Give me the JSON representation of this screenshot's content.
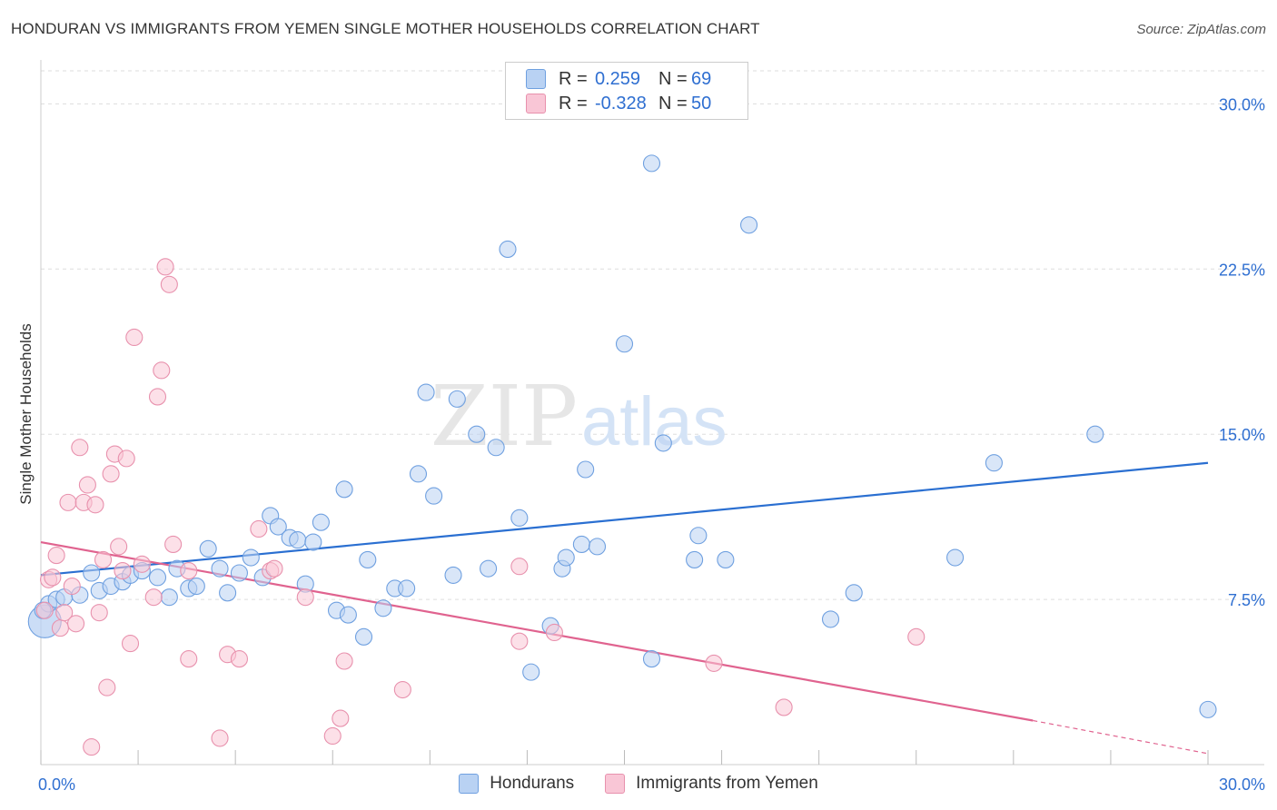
{
  "title": "HONDURAN VS IMMIGRANTS FROM YEMEN SINGLE MOTHER HOUSEHOLDS CORRELATION CHART",
  "source": "Source: ZipAtlas.com",
  "watermark": {
    "zip": "ZIP",
    "atlas": "atlas"
  },
  "legend": {
    "r_label": "R =",
    "n_label": "N =",
    "rows": [
      {
        "r": "0.259",
        "n": "69",
        "color": "#a9c8f3"
      },
      {
        "r": "-0.328",
        "n": "50",
        "color": "#f8bbd0"
      }
    ]
  },
  "chart_data": {
    "type": "scatter",
    "title": "HONDURAN VS IMMIGRANTS FROM YEMEN SINGLE MOTHER HOUSEHOLDS CORRELATION CHART",
    "xlabel": "",
    "ylabel": "Single Mother Households",
    "xlim": [
      0,
      30
    ],
    "ylim": [
      0,
      31.5
    ],
    "x_tick_labels": [
      {
        "value": 0,
        "label": "0.0%"
      },
      {
        "value": 30,
        "label": "30.0%"
      }
    ],
    "y_tick_labels": [
      {
        "value": 7.5,
        "label": "7.5%"
      },
      {
        "value": 15,
        "label": "15.0%"
      },
      {
        "value": 22.5,
        "label": "22.5%"
      },
      {
        "value": 30,
        "label": "30.0%"
      }
    ],
    "grid": true,
    "legend_position": "top-center",
    "series": [
      {
        "name": "Hondurans",
        "color": "#6fa0e0",
        "fill": "#b9d2f3",
        "trend": {
          "x0": 0,
          "y0": 8.6,
          "x1": 30,
          "y1": 13.7,
          "color": "#2a6fd1"
        },
        "points": [
          [
            0.1,
            6.5
          ],
          [
            0.2,
            7.3
          ],
          [
            0.4,
            7.5
          ],
          [
            0.6,
            7.6
          ],
          [
            1.0,
            7.7
          ],
          [
            1.3,
            8.7
          ],
          [
            1.5,
            7.9
          ],
          [
            1.8,
            8.1
          ],
          [
            2.1,
            8.3
          ],
          [
            2.3,
            8.6
          ],
          [
            2.6,
            8.8
          ],
          [
            3.0,
            8.5
          ],
          [
            3.3,
            7.6
          ],
          [
            3.5,
            8.9
          ],
          [
            3.8,
            8.0
          ],
          [
            4.0,
            8.1
          ],
          [
            4.3,
            9.8
          ],
          [
            4.6,
            8.9
          ],
          [
            4.8,
            7.8
          ],
          [
            5.1,
            8.7
          ],
          [
            5.4,
            9.4
          ],
          [
            5.7,
            8.5
          ],
          [
            5.9,
            11.3
          ],
          [
            6.1,
            10.8
          ],
          [
            6.4,
            10.3
          ],
          [
            6.6,
            10.2
          ],
          [
            6.8,
            8.2
          ],
          [
            7.0,
            10.1
          ],
          [
            7.2,
            11.0
          ],
          [
            7.6,
            7.0
          ],
          [
            7.8,
            12.5
          ],
          [
            7.9,
            6.8
          ],
          [
            8.3,
            5.8
          ],
          [
            8.4,
            9.3
          ],
          [
            8.8,
            7.1
          ],
          [
            9.1,
            8.0
          ],
          [
            9.4,
            8.0
          ],
          [
            9.7,
            13.2
          ],
          [
            9.9,
            16.9
          ],
          [
            10.1,
            12.2
          ],
          [
            10.6,
            8.6
          ],
          [
            10.7,
            16.6
          ],
          [
            11.2,
            15.0
          ],
          [
            11.5,
            8.9
          ],
          [
            11.7,
            14.4
          ],
          [
            12.0,
            23.4
          ],
          [
            12.3,
            11.2
          ],
          [
            12.6,
            4.2
          ],
          [
            13.1,
            6.3
          ],
          [
            13.4,
            8.9
          ],
          [
            13.5,
            9.4
          ],
          [
            13.9,
            10.0
          ],
          [
            14.0,
            13.4
          ],
          [
            14.3,
            9.9
          ],
          [
            15.0,
            19.1
          ],
          [
            15.7,
            27.3
          ],
          [
            15.7,
            4.8
          ],
          [
            16.0,
            14.6
          ],
          [
            16.8,
            9.3
          ],
          [
            16.9,
            10.4
          ],
          [
            17.6,
            9.3
          ],
          [
            18.2,
            24.5
          ],
          [
            20.3,
            6.6
          ],
          [
            20.9,
            7.8
          ],
          [
            23.5,
            9.4
          ],
          [
            24.5,
            13.7
          ],
          [
            27.1,
            15.0
          ],
          [
            30.0,
            2.5
          ],
          [
            0.05,
            7.0
          ]
        ]
      },
      {
        "name": "Immigrants from Yemen",
        "color": "#e891ad",
        "fill": "#f9c6d6",
        "trend": {
          "x0": 0,
          "y0": 10.1,
          "x1": 25.5,
          "y1": 2.0,
          "color": "#e0638f",
          "dash_x1": 30,
          "dash_y1": 0.5
        },
        "points": [
          [
            0.1,
            7.0
          ],
          [
            0.2,
            8.4
          ],
          [
            0.3,
            8.5
          ],
          [
            0.5,
            6.2
          ],
          [
            0.6,
            6.9
          ],
          [
            0.7,
            11.9
          ],
          [
            0.8,
            8.1
          ],
          [
            0.9,
            6.4
          ],
          [
            1.0,
            14.4
          ],
          [
            1.1,
            11.9
          ],
          [
            1.2,
            12.7
          ],
          [
            1.3,
            0.8
          ],
          [
            1.4,
            11.8
          ],
          [
            1.5,
            6.9
          ],
          [
            1.6,
            9.3
          ],
          [
            1.7,
            3.5
          ],
          [
            1.8,
            13.2
          ],
          [
            1.9,
            14.1
          ],
          [
            2.0,
            9.9
          ],
          [
            2.1,
            8.8
          ],
          [
            2.2,
            13.9
          ],
          [
            2.3,
            5.5
          ],
          [
            2.4,
            19.4
          ],
          [
            2.9,
            7.6
          ],
          [
            3.0,
            16.7
          ],
          [
            3.1,
            17.9
          ],
          [
            3.2,
            22.6
          ],
          [
            3.3,
            21.8
          ],
          [
            3.4,
            10.0
          ],
          [
            3.8,
            8.8
          ],
          [
            3.8,
            4.8
          ],
          [
            4.6,
            1.2
          ],
          [
            4.8,
            5.0
          ],
          [
            5.1,
            4.8
          ],
          [
            5.6,
            10.7
          ],
          [
            5.9,
            8.8
          ],
          [
            6.0,
            8.9
          ],
          [
            6.8,
            7.6
          ],
          [
            7.5,
            1.3
          ],
          [
            7.7,
            2.1
          ],
          [
            7.8,
            4.7
          ],
          [
            9.3,
            3.4
          ],
          [
            12.3,
            9.0
          ],
          [
            12.3,
            5.6
          ],
          [
            13.2,
            6.0
          ],
          [
            17.3,
            4.6
          ],
          [
            19.1,
            2.6
          ],
          [
            22.5,
            5.8
          ],
          [
            0.4,
            9.5
          ],
          [
            2.6,
            9.1
          ]
        ]
      }
    ]
  }
}
